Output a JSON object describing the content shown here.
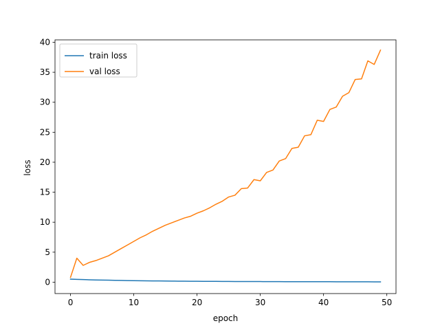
{
  "chart_data": {
    "type": "line",
    "title": "",
    "xlabel": "epoch",
    "ylabel": "loss",
    "xlim": [
      -2.45,
      51.45
    ],
    "ylim": [
      -1.9,
      40.4
    ],
    "xticks": [
      0,
      10,
      20,
      30,
      40,
      50
    ],
    "yticks": [
      0,
      5,
      10,
      15,
      20,
      25,
      30,
      35,
      40
    ],
    "grid": false,
    "legend_position": "top-left",
    "x": [
      0,
      1,
      2,
      3,
      4,
      5,
      6,
      7,
      8,
      9,
      10,
      11,
      12,
      13,
      14,
      15,
      16,
      17,
      18,
      19,
      20,
      21,
      22,
      23,
      24,
      25,
      26,
      27,
      28,
      29,
      30,
      31,
      32,
      33,
      34,
      35,
      36,
      37,
      38,
      39,
      40,
      41,
      42,
      43,
      44,
      45,
      46,
      47,
      48,
      49
    ],
    "series": [
      {
        "name": "train loss",
        "color": "#1f77b4",
        "values": [
          0.5,
          0.46,
          0.43,
          0.4,
          0.37,
          0.35,
          0.33,
          0.31,
          0.29,
          0.27,
          0.25,
          0.24,
          0.22,
          0.21,
          0.2,
          0.19,
          0.18,
          0.17,
          0.16,
          0.15,
          0.15,
          0.14,
          0.13,
          0.13,
          0.12,
          0.12,
          0.11,
          0.11,
          0.1,
          0.1,
          0.1,
          0.09,
          0.09,
          0.09,
          0.08,
          0.08,
          0.08,
          0.08,
          0.07,
          0.07,
          0.07,
          0.07,
          0.06,
          0.06,
          0.06,
          0.06,
          0.06,
          0.06,
          0.05,
          0.05
        ]
      },
      {
        "name": "val loss",
        "color": "#ff7f0e",
        "values": [
          0.8,
          4.0,
          2.8,
          3.3,
          3.6,
          4.0,
          4.4,
          5.0,
          5.6,
          6.2,
          6.8,
          7.4,
          7.9,
          8.5,
          9.0,
          9.5,
          9.9,
          10.3,
          10.7,
          11.0,
          11.5,
          11.9,
          12.4,
          13.0,
          13.5,
          14.2,
          14.5,
          15.6,
          15.7,
          17.1,
          16.9,
          18.3,
          18.7,
          20.2,
          20.6,
          22.3,
          22.5,
          24.4,
          24.6,
          27.0,
          26.8,
          28.8,
          29.2,
          31.0,
          31.6,
          33.8,
          33.9,
          36.9,
          36.3,
          38.7
        ]
      }
    ]
  }
}
